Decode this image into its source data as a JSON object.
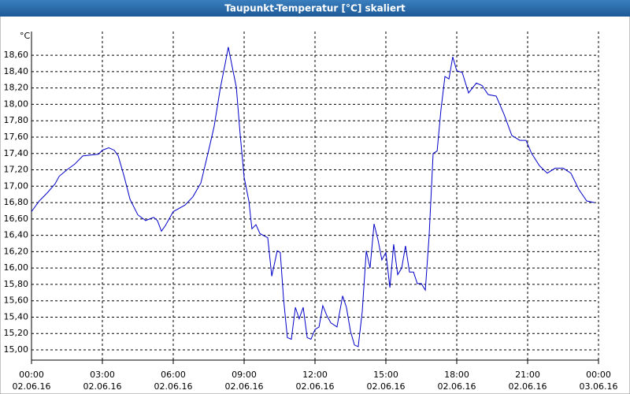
{
  "chart_data": {
    "type": "line",
    "title": "Taupunkt-Temperatur [°C] skaliert",
    "ylabel": "°C",
    "color": "#0000c8",
    "grid": true,
    "x": [
      0,
      0.33,
      0.67,
      1,
      1.17,
      1.5,
      1.83,
      2.17,
      2.5,
      2.83,
      3,
      3.27,
      3.5,
      3.67,
      3.93,
      4.17,
      4.5,
      4.83,
      5.17,
      5.33,
      5.5,
      5.67,
      6,
      6.5,
      6.83,
      7.17,
      7.5,
      7.73,
      8,
      8.2,
      8.33,
      8.53,
      8.67,
      8.83,
      9,
      9.2,
      9.33,
      9.5,
      9.67,
      10,
      10.17,
      10.4,
      10.53,
      10.67,
      10.83,
      11,
      11.17,
      11.33,
      11.5,
      11.67,
      11.83,
      12,
      12.17,
      12.33,
      12.5,
      12.67,
      12.93,
      13.17,
      13.33,
      13.5,
      13.67,
      13.83,
      14,
      14.17,
      14.33,
      14.5,
      14.67,
      14.83,
      15,
      15.17,
      15.33,
      15.5,
      15.67,
      15.83,
      16,
      16.17,
      16.33,
      16.5,
      16.67,
      16.83,
      17,
      17.17,
      17.33,
      17.5,
      17.67,
      17.83,
      18,
      18.23,
      18.5,
      18.83,
      19.07,
      19.33,
      19.67,
      20,
      20.33,
      20.67,
      20.93,
      21.17,
      21.5,
      21.83,
      22.17,
      22.5,
      22.83,
      23.17,
      23.5,
      23.83
    ],
    "values": [
      16.69,
      16.82,
      16.92,
      17.03,
      17.12,
      17.2,
      17.27,
      17.37,
      17.38,
      17.39,
      17.44,
      17.47,
      17.44,
      17.37,
      17.11,
      16.84,
      16.65,
      16.58,
      16.62,
      16.58,
      16.45,
      16.52,
      16.69,
      16.77,
      16.87,
      17.04,
      17.44,
      17.73,
      18.21,
      18.5,
      18.7,
      18.41,
      18.21,
      17.64,
      17.11,
      16.82,
      16.48,
      16.53,
      16.42,
      16.37,
      15.9,
      16.21,
      16.19,
      15.62,
      15.15,
      15.13,
      15.52,
      15.38,
      15.52,
      15.15,
      15.13,
      15.25,
      15.28,
      15.54,
      15.42,
      15.33,
      15.28,
      15.66,
      15.52,
      15.23,
      15.06,
      15.04,
      15.47,
      16.21,
      16.0,
      16.54,
      16.34,
      16.1,
      16.19,
      15.76,
      16.29,
      15.92,
      16.0,
      16.27,
      15.95,
      15.95,
      15.81,
      15.81,
      15.73,
      16.39,
      17.4,
      17.43,
      17.93,
      18.34,
      18.31,
      18.58,
      18.41,
      18.39,
      18.14,
      18.26,
      18.23,
      18.12,
      18.1,
      17.88,
      17.62,
      17.56,
      17.56,
      17.4,
      17.25,
      17.16,
      17.22,
      17.22,
      17.16,
      16.96,
      16.82,
      16.8
    ],
    "xlim": [
      0,
      24
    ],
    "xticks": [
      {
        "value": 0,
        "label": "00:00",
        "date": "02.06.16"
      },
      {
        "value": 3,
        "label": "03:00",
        "date": "02.06.16"
      },
      {
        "value": 6,
        "label": "06:00",
        "date": "02.06.16"
      },
      {
        "value": 9,
        "label": "09:00",
        "date": "02.06.16"
      },
      {
        "value": 12,
        "label": "12:00",
        "date": "02.06.16"
      },
      {
        "value": 15,
        "label": "15:00",
        "date": "02.06.16"
      },
      {
        "value": 18,
        "label": "18:00",
        "date": "02.06.16"
      },
      {
        "value": 21,
        "label": "21:00",
        "date": "02.06.16"
      },
      {
        "value": 24,
        "label": "00:00",
        "date": "03.06.16"
      }
    ],
    "ylim": [
      14.875,
      18.89
    ],
    "yticks": [
      {
        "value": 15,
        "label": "15,00"
      },
      {
        "value": 15.2,
        "label": "15,20"
      },
      {
        "value": 15.4,
        "label": "15,40"
      },
      {
        "value": 15.6,
        "label": "15,60"
      },
      {
        "value": 15.8,
        "label": "15,80"
      },
      {
        "value": 16,
        "label": "16,00"
      },
      {
        "value": 16.2,
        "label": "16,20"
      },
      {
        "value": 16.4,
        "label": "16,40"
      },
      {
        "value": 16.6,
        "label": "16,60"
      },
      {
        "value": 16.8,
        "label": "16,80"
      },
      {
        "value": 17,
        "label": "17,00"
      },
      {
        "value": 17.2,
        "label": "17,20"
      },
      {
        "value": 17.4,
        "label": "17,40"
      },
      {
        "value": 17.6,
        "label": "17,60"
      },
      {
        "value": 17.8,
        "label": "17,80"
      },
      {
        "value": 18,
        "label": "18,00"
      },
      {
        "value": 18.2,
        "label": "18,20"
      },
      {
        "value": 18.4,
        "label": "18,40"
      },
      {
        "value": 18.6,
        "label": "18,60"
      }
    ]
  }
}
